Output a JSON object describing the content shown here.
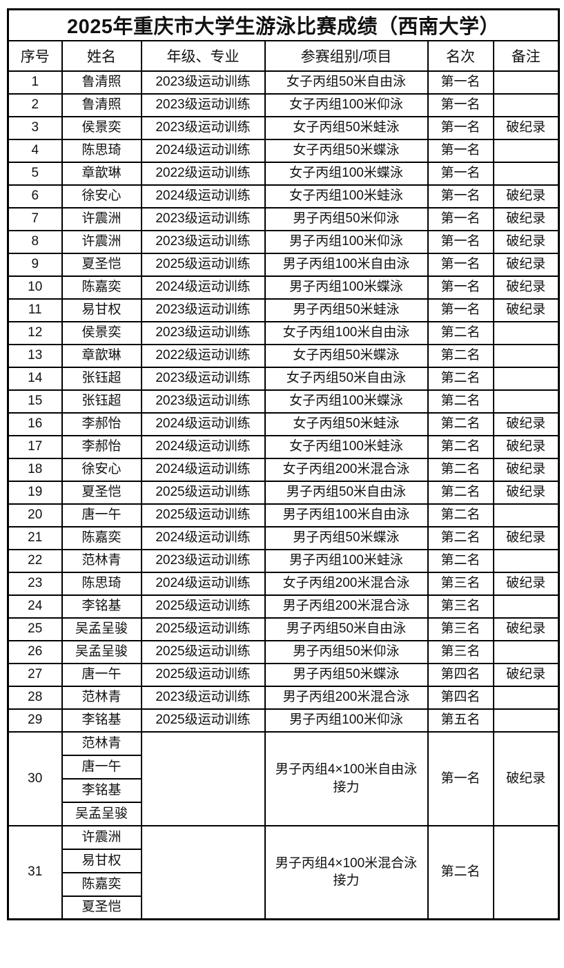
{
  "page": {
    "background": "#ffffff",
    "text_color": "#111111",
    "border_color": "#000000"
  },
  "table": {
    "title": "2025年重庆市大学生游泳比赛成绩（西南大学）",
    "headers": [
      "序号",
      "姓名",
      "年级、专业",
      "参赛组别/项目",
      "名次",
      "备注"
    ],
    "rows": [
      {
        "no": "1",
        "name": "鲁清照",
        "grade": "2023级运动训练",
        "event": "女子丙组50米自由泳",
        "rank": "第一名",
        "note": ""
      },
      {
        "no": "2",
        "name": "鲁清照",
        "grade": "2023级运动训练",
        "event": "女子丙组100米仰泳",
        "rank": "第一名",
        "note": ""
      },
      {
        "no": "3",
        "name": "侯景奕",
        "grade": "2023级运动训练",
        "event": "女子丙组50米蛙泳",
        "rank": "第一名",
        "note": "破纪录"
      },
      {
        "no": "4",
        "name": "陈思琦",
        "grade": "2024级运动训练",
        "event": "女子丙组50米蝶泳",
        "rank": "第一名",
        "note": ""
      },
      {
        "no": "5",
        "name": "章歆琳",
        "grade": "2022级运动训练",
        "event": "女子丙组100米蝶泳",
        "rank": "第一名",
        "note": ""
      },
      {
        "no": "6",
        "name": "徐安心",
        "grade": "2024级运动训练",
        "event": "女子丙组100米蛙泳",
        "rank": "第一名",
        "note": "破纪录"
      },
      {
        "no": "7",
        "name": "许震洲",
        "grade": "2023级运动训练",
        "event": "男子丙组50米仰泳",
        "rank": "第一名",
        "note": "破纪录"
      },
      {
        "no": "8",
        "name": "许震洲",
        "grade": "2023级运动训练",
        "event": "男子丙组100米仰泳",
        "rank": "第一名",
        "note": "破纪录"
      },
      {
        "no": "9",
        "name": "夏圣恺",
        "grade": "2025级运动训练",
        "event": "男子丙组100米自由泳",
        "rank": "第一名",
        "note": "破纪录"
      },
      {
        "no": "10",
        "name": "陈嘉奕",
        "grade": "2024级运动训练",
        "event": "男子丙组100米蝶泳",
        "rank": "第一名",
        "note": "破纪录"
      },
      {
        "no": "11",
        "name": "易甘权",
        "grade": "2023级运动训练",
        "event": "男子丙组50米蛙泳",
        "rank": "第一名",
        "note": "破纪录"
      },
      {
        "no": "12",
        "name": "侯景奕",
        "grade": "2023级运动训练",
        "event": "女子丙组100米自由泳",
        "rank": "第二名",
        "note": ""
      },
      {
        "no": "13",
        "name": "章歆琳",
        "grade": "2022级运动训练",
        "event": "女子丙组50米蝶泳",
        "rank": "第二名",
        "note": ""
      },
      {
        "no": "14",
        "name": "张钰超",
        "grade": "2023级运动训练",
        "event": "女子丙组50米自由泳",
        "rank": "第二名",
        "note": ""
      },
      {
        "no": "15",
        "name": "张钰超",
        "grade": "2023级运动训练",
        "event": "女子丙组100米蝶泳",
        "rank": "第二名",
        "note": ""
      },
      {
        "no": "16",
        "name": "李郝怡",
        "grade": "2024级运动训练",
        "event": "女子丙组50米蛙泳",
        "rank": "第二名",
        "note": "破纪录"
      },
      {
        "no": "17",
        "name": "李郝怡",
        "grade": "2024级运动训练",
        "event": "女子丙组100米蛙泳",
        "rank": "第二名",
        "note": "破纪录"
      },
      {
        "no": "18",
        "name": "徐安心",
        "grade": "2024级运动训练",
        "event": "女子丙组200米混合泳",
        "rank": "第二名",
        "note": "破纪录"
      },
      {
        "no": "19",
        "name": "夏圣恺",
        "grade": "2025级运动训练",
        "event": "男子丙组50米自由泳",
        "rank": "第二名",
        "note": "破纪录"
      },
      {
        "no": "20",
        "name": "唐一午",
        "grade": "2025级运动训练",
        "event": "男子丙组100米自由泳",
        "rank": "第二名",
        "note": ""
      },
      {
        "no": "21",
        "name": "陈嘉奕",
        "grade": "2024级运动训练",
        "event": "男子丙组50米蝶泳",
        "rank": "第二名",
        "note": "破纪录"
      },
      {
        "no": "22",
        "name": "范林青",
        "grade": "2023级运动训练",
        "event": "男子丙组100米蛙泳",
        "rank": "第二名",
        "note": ""
      },
      {
        "no": "23",
        "name": "陈思琦",
        "grade": "2024级运动训练",
        "event": "女子丙组200米混合泳",
        "rank": "第三名",
        "note": "破纪录"
      },
      {
        "no": "24",
        "name": "李铭基",
        "grade": "2025级运动训练",
        "event": "男子丙组200米混合泳",
        "rank": "第三名",
        "note": ""
      },
      {
        "no": "25",
        "name": "吴孟呈骏",
        "grade": "2025级运动训练",
        "event": "男子丙组50米自由泳",
        "rank": "第三名",
        "note": "破纪录"
      },
      {
        "no": "26",
        "name": "吴孟呈骏",
        "grade": "2025级运动训练",
        "event": "男子丙组50米仰泳",
        "rank": "第三名",
        "note": ""
      },
      {
        "no": "27",
        "name": "唐一午",
        "grade": "2025级运动训练",
        "event": "男子丙组50米蝶泳",
        "rank": "第四名",
        "note": "破纪录"
      },
      {
        "no": "28",
        "name": "范林青",
        "grade": "2023级运动训练",
        "event": "男子丙组200米混合泳",
        "rank": "第四名",
        "note": ""
      },
      {
        "no": "29",
        "name": "李铭基",
        "grade": "2025级运动训练",
        "event": "男子丙组100米仰泳",
        "rank": "第五名",
        "note": ""
      },
      {
        "no": "30",
        "names": [
          "范林青",
          "唐一午",
          "李铭基",
          "吴孟呈骏"
        ],
        "grade": "",
        "event": "男子丙组4×100米自由泳接力",
        "rank": "第一名",
        "note": "破纪录"
      },
      {
        "no": "31",
        "names": [
          "许震洲",
          "易甘权",
          "陈嘉奕",
          "夏圣恺"
        ],
        "grade": "",
        "event": "男子丙组4×100米混合泳接力",
        "rank": "第二名",
        "note": ""
      }
    ]
  }
}
